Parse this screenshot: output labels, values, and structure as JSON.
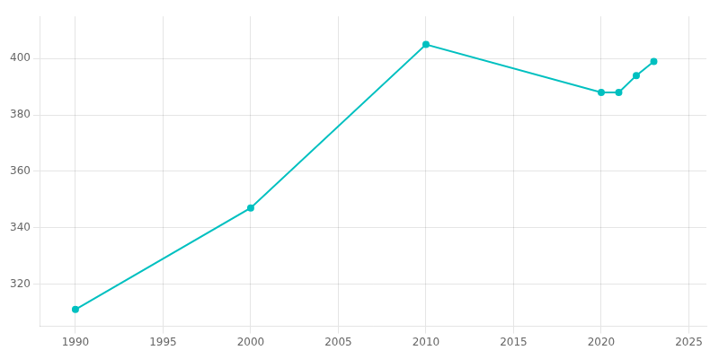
{
  "chart_data": {
    "type": "line",
    "x": [
      1990,
      2000,
      2010,
      2020,
      2021,
      2022,
      2023
    ],
    "values": [
      311,
      347,
      405,
      388,
      388,
      394,
      399
    ],
    "color": "#00C0C0",
    "marker": "circle",
    "xlim": [
      1988,
      2026
    ],
    "ylim": [
      305,
      415
    ],
    "xticks": [
      1990,
      1995,
      2000,
      2005,
      2010,
      2015,
      2020,
      2025
    ],
    "yticks": [
      320,
      340,
      360,
      380,
      400
    ],
    "grid": true
  }
}
